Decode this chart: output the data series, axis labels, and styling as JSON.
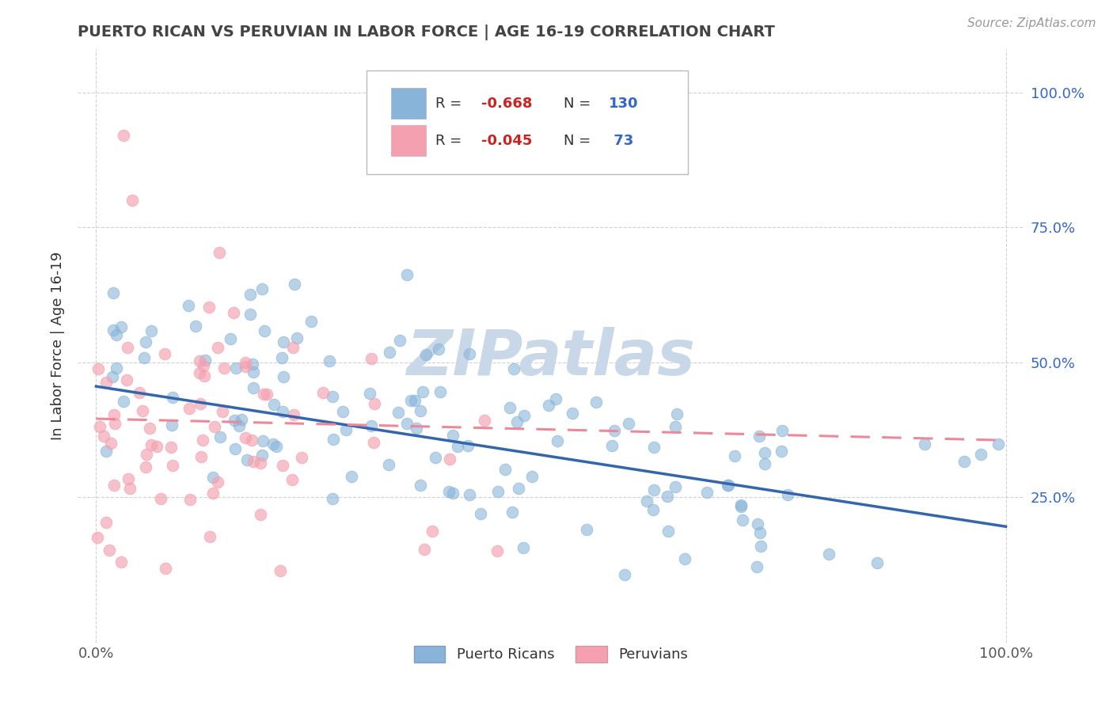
{
  "title": "PUERTO RICAN VS PERUVIAN IN LABOR FORCE | AGE 16-19 CORRELATION CHART",
  "source_text": "Source: ZipAtlas.com",
  "ylabel": "In Labor Force | Age 16-19",
  "xlim": [
    -0.02,
    1.02
  ],
  "ylim": [
    -0.02,
    1.08
  ],
  "xtick_labels": [
    "0.0%",
    "",
    "",
    "",
    "100.0%"
  ],
  "xtick_vals": [
    0.0,
    0.25,
    0.5,
    0.75,
    1.0
  ],
  "ytick_labels": [
    "25.0%",
    "50.0%",
    "75.0%",
    "100.0%"
  ],
  "ytick_vals": [
    0.25,
    0.5,
    0.75,
    1.0
  ],
  "blue_R": -0.668,
  "blue_N": 130,
  "pink_R": -0.045,
  "pink_N": 73,
  "blue_color": "#89B4D9",
  "pink_color": "#F4A0B0",
  "blue_line_color": "#3366AA",
  "pink_line_color": "#EE8899",
  "title_color": "#444444",
  "legend_r_text_color": "#333333",
  "legend_val_color": "#CC2222",
  "legend_n_val_color": "#3366CC",
  "watermark_color": "#C8D8E8",
  "background_color": "#FFFFFF",
  "grid_color": "#CCCCCC",
  "ytick_color": "#3366CC",
  "seed": 7,
  "blue_line_start_x": 0.0,
  "blue_line_start_y": 0.455,
  "blue_line_end_x": 1.0,
  "blue_line_end_y": 0.195,
  "pink_line_start_x": 0.0,
  "pink_line_start_y": 0.395,
  "pink_line_end_x": 1.0,
  "pink_line_end_y": 0.355
}
